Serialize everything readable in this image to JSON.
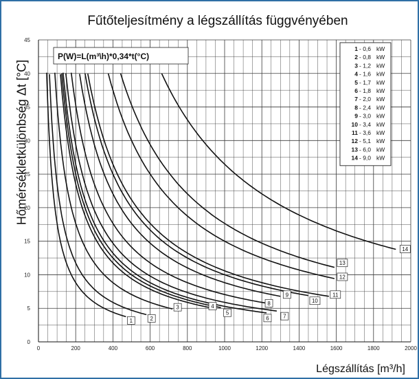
{
  "chart_data": {
    "type": "line",
    "title": "Fűtőteljesítmény a légszállítás függvényében",
    "xlabel": "Légszállítás [m³/h]",
    "ylabel": "Hőmérsékletkülönbség  Δt [°C]",
    "formula": "P(W)=L(m³\\h)*0,34*t(°C)",
    "xlim": [
      0,
      2000
    ],
    "ylim": [
      0,
      45
    ],
    "xticks": [
      0,
      200,
      400,
      600,
      800,
      1000,
      1200,
      1400,
      1600,
      1800,
      2000
    ],
    "yticks": [
      0,
      5,
      10,
      15,
      20,
      25,
      30,
      35,
      40,
      45
    ],
    "grid": true,
    "legend_position": "top-right",
    "series": [
      {
        "name": "1",
        "power_label": "0,6",
        "unit": "kW",
        "power_w": 600,
        "x": [
          44,
          60,
          90,
          150,
          250,
          350,
          470
        ],
        "y": [
          40,
          29.4,
          19.6,
          11.8,
          7.1,
          5.0,
          3.8
        ]
      },
      {
        "name": "2",
        "power_label": "0,8",
        "unit": "kW",
        "power_w": 800,
        "x": [
          59,
          80,
          120,
          200,
          300,
          450,
          580
        ],
        "y": [
          40,
          29.4,
          19.6,
          11.8,
          7.8,
          5.2,
          4.1
        ]
      },
      {
        "name": "3",
        "power_label": "1,2",
        "unit": "kW",
        "power_w": 1200,
        "x": [
          88,
          120,
          180,
          300,
          450,
          600,
          720
        ],
        "y": [
          40,
          29.4,
          19.6,
          11.8,
          7.8,
          5.9,
          4.9
        ]
      },
      {
        "name": "4",
        "power_label": "1,6",
        "unit": "kW",
        "power_w": 1600,
        "x": [
          118,
          160,
          240,
          400,
          600,
          800,
          930
        ],
        "y": [
          40,
          29.4,
          19.6,
          11.8,
          7.8,
          5.9,
          5.1
        ]
      },
      {
        "name": "5",
        "power_label": "1,7",
        "unit": "kW",
        "power_w": 1700,
        "x": [
          125,
          170,
          255,
          420,
          630,
          850,
          980
        ],
        "y": [
          40,
          29.4,
          19.6,
          11.9,
          7.9,
          5.9,
          5.1
        ]
      },
      {
        "name": "6",
        "power_label": "1,8",
        "unit": "kW",
        "power_w": 1800,
        "x": [
          132,
          180,
          270,
          450,
          700,
          950,
          1225
        ],
        "y": [
          40,
          29.4,
          19.6,
          11.8,
          7.6,
          5.6,
          4.3
        ]
      },
      {
        "name": "7",
        "power_label": "2,0",
        "unit": "kW",
        "power_w": 2000,
        "x": [
          147,
          200,
          300,
          500,
          750,
          1000,
          1280
        ],
        "y": [
          40,
          29.4,
          19.6,
          11.8,
          7.8,
          5.9,
          4.6
        ]
      },
      {
        "name": "8",
        "power_label": "2,4",
        "unit": "kW",
        "power_w": 2400,
        "x": [
          176,
          240,
          360,
          600,
          850,
          1050,
          1240
        ],
        "y": [
          40,
          29.4,
          19.6,
          11.8,
          8.3,
          6.7,
          5.7
        ]
      },
      {
        "name": "9",
        "power_label": "3,0",
        "unit": "kW",
        "power_w": 3000,
        "x": [
          221,
          300,
          450,
          650,
          900,
          1100,
          1300
        ],
        "y": [
          40,
          29.4,
          19.6,
          13.6,
          9.8,
          8.0,
          6.8
        ]
      },
      {
        "name": "10",
        "power_label": "3,4",
        "unit": "kW",
        "power_w": 3400,
        "x": [
          250,
          340,
          500,
          700,
          900,
          1150,
          1450
        ],
        "y": [
          40,
          29.4,
          20.0,
          14.3,
          11.1,
          8.7,
          6.9
        ]
      },
      {
        "name": "11",
        "power_label": "3,6",
        "unit": "kW",
        "power_w": 3600,
        "x": [
          265,
          360,
          500,
          700,
          950,
          1200,
          1560
        ],
        "y": [
          40,
          29.4,
          21.2,
          15.1,
          11.1,
          8.8,
          6.8
        ]
      },
      {
        "name": "12",
        "power_label": "5,1",
        "unit": "kW",
        "power_w": 5100,
        "x": [
          375,
          500,
          700,
          900,
          1150,
          1400,
          1590
        ],
        "y": [
          40,
          30.0,
          21.4,
          16.7,
          13.0,
          10.7,
          9.4
        ]
      },
      {
        "name": "13",
        "power_label": "6,0",
        "unit": "kW",
        "power_w": 6000,
        "x": [
          441,
          600,
          800,
          1000,
          1200,
          1400,
          1590
        ],
        "y": [
          40,
          29.4,
          22.1,
          17.6,
          14.7,
          12.6,
          11.1
        ]
      },
      {
        "name": "14",
        "power_label": "9,0",
        "unit": "kW",
        "power_w": 9000,
        "x": [
          662,
          800,
          1000,
          1200,
          1400,
          1600,
          1920
        ],
        "y": [
          40,
          33.1,
          26.5,
          22.1,
          18.9,
          16.5,
          13.8
        ]
      }
    ]
  }
}
